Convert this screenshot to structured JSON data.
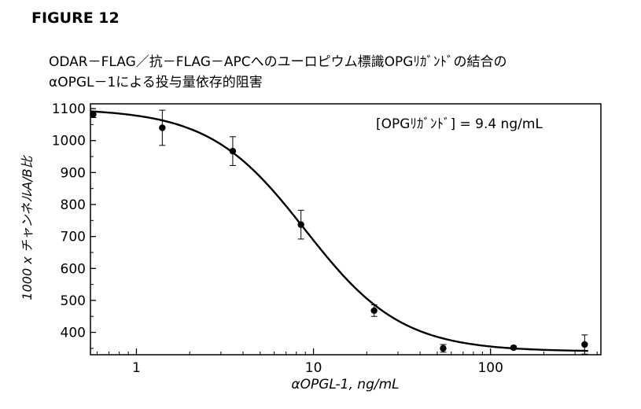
{
  "figure_label": "FIGURE 12",
  "chart_data": {
    "type": "scatter",
    "title_line1": "ODAR－FLAG／抗－FLAG－APCへのユーロピウム標識OPGﾘｶﾞﾝﾄﾞの結合の",
    "title_line2": "αOPGL－1による投与量依存的阻害",
    "annotation": "[OPGﾘｶﾞﾝﾄﾞ] = 9.4 ng/mL",
    "xlabel": "αOPGL-1, ng/mL",
    "ylabel": "1000 x チャンネルA/B比",
    "x_scale": "log",
    "xlim": [
      0.55,
      420
    ],
    "ylim": [
      330,
      1115
    ],
    "x_ticks": [
      1,
      10,
      100
    ],
    "x_tick_labels": [
      "1",
      "10",
      "100"
    ],
    "y_ticks": [
      400,
      500,
      600,
      700,
      800,
      900,
      1000,
      1100
    ],
    "y_tick_labels": [
      "400",
      "500",
      "600",
      "700",
      "800",
      "900",
      "1000",
      "1100"
    ],
    "grid": false,
    "series": [
      {
        "points": [
          {
            "x": 0.57,
            "y": 1082,
            "err": 10
          },
          {
            "x": 1.4,
            "y": 1040,
            "err": 55
          },
          {
            "x": 3.5,
            "y": 967,
            "err": 45
          },
          {
            "x": 8.5,
            "y": 737,
            "err": 45
          },
          {
            "x": 22,
            "y": 468,
            "err": 18
          },
          {
            "x": 54,
            "y": 350,
            "err": 12
          },
          {
            "x": 135,
            "y": 352,
            "err": 5
          },
          {
            "x": 340,
            "y": 362,
            "err": 30
          }
        ]
      }
    ],
    "fit_curve": {
      "top": 1100,
      "bottom": 340,
      "ec50": 9.0,
      "hill": 1.6
    }
  }
}
